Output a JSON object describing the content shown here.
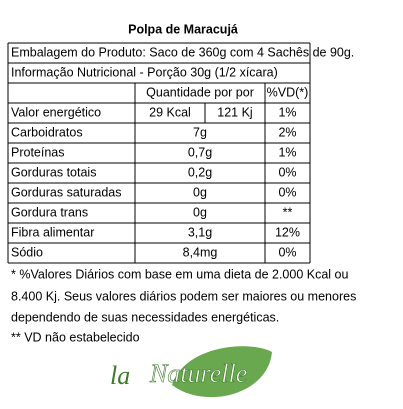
{
  "title": "Polpa de Maracujá",
  "packaging": "Embalagem do Produto: Saco de 360g com 4 Sachês de 90g.",
  "serving": "Informação Nutricional - Porção 30g (1/2 xícara)",
  "table": {
    "header": [
      "Quantidade por por",
      "%VD(*)"
    ],
    "rows": [
      [
        "Valor energético",
        "29 Kcal",
        "121 Kj",
        "1%"
      ],
      [
        "Carboidratos",
        "7g",
        "2%"
      ],
      [
        "Proteínas",
        "0,7g",
        "1%"
      ],
      [
        "Gorduras totais",
        "0,2g",
        "0%"
      ],
      [
        "Gorduras saturadas",
        "0g",
        "0%"
      ],
      [
        "Gordura trans",
        "0g",
        "**"
      ],
      [
        "Fibra alimentar",
        "3,1g",
        "12%"
      ],
      [
        "Sódio",
        "8,4mg",
        "0%"
      ]
    ]
  },
  "footnotes": [
    "* %Valores Diários com base em uma dieta de 2.000 Kcal ou",
    "8.400 Kj. Seus valores diários podem ser maiores ou menores",
    "dependendo de suas necessidades energéticas.",
    "** VD não estabelecido"
  ],
  "logo": {
    "prefix": "la",
    "name": "Naturelle"
  }
}
